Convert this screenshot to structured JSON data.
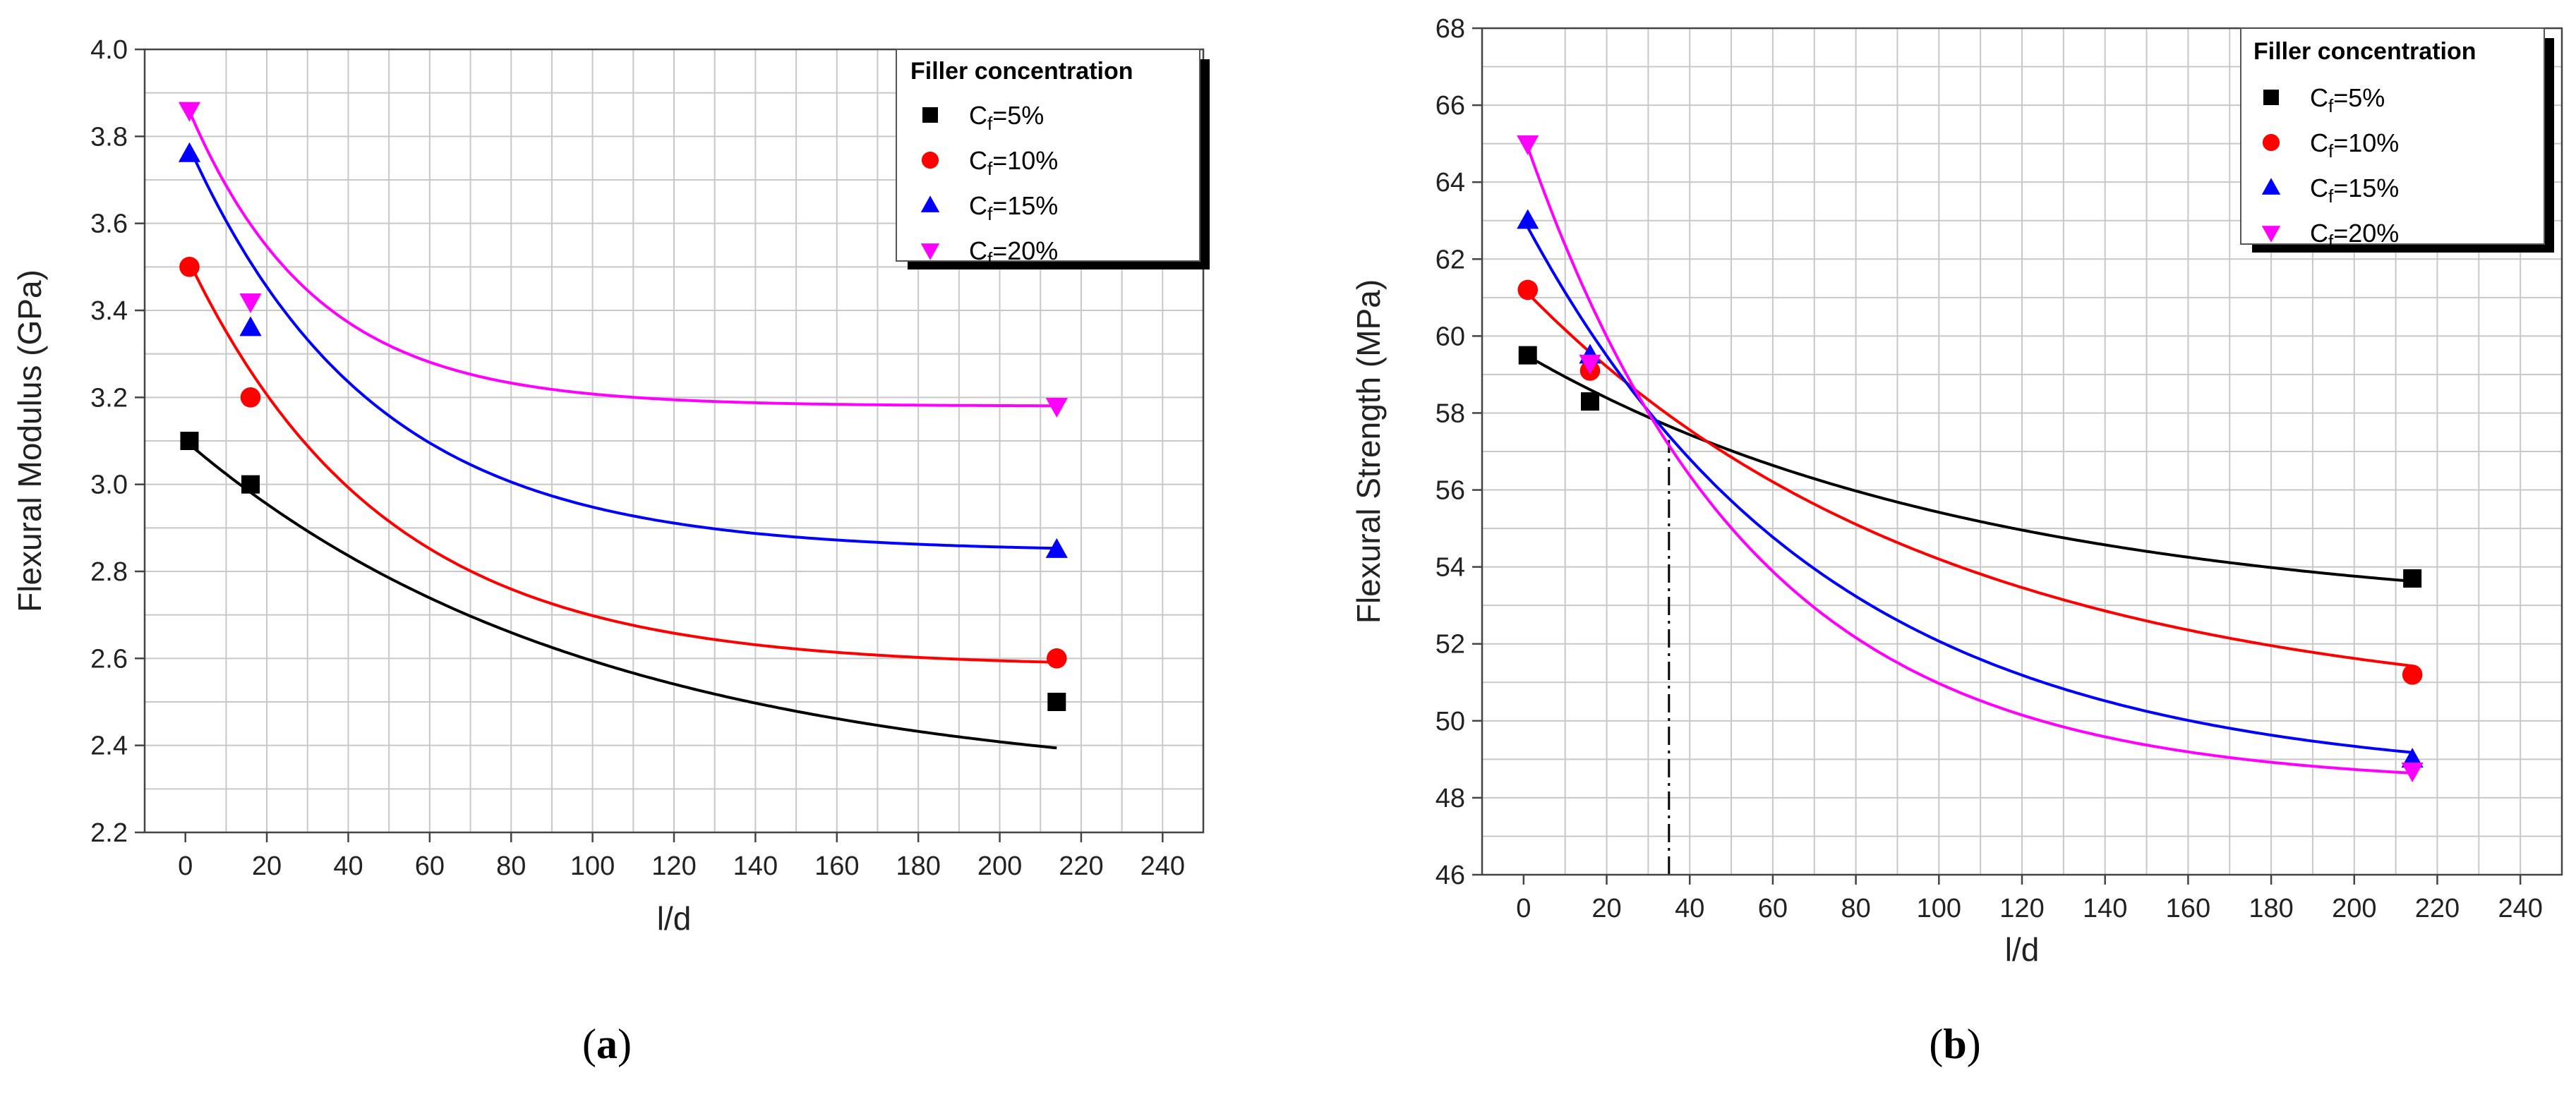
{
  "figure": {
    "panel_a_caption": {
      "open": "(",
      "letter": "a",
      "close": ")"
    },
    "panel_b_caption": {
      "open": "(",
      "letter": "b",
      "close": ")"
    }
  },
  "legend": {
    "title": "Filler concentration",
    "entries": [
      "Cf=5%",
      "Cf=10%",
      "Cf=15%",
      "Cf=20%"
    ],
    "prefix": "C",
    "subscript": "f",
    "suffixes": [
      "=5%",
      "=10%",
      "=15%",
      "=20%"
    ]
  },
  "chart_data": [
    {
      "type": "scatter",
      "title": "",
      "xlabel": "l/d",
      "ylabel": "Flexural Modulus (GPa)",
      "xlim": [
        -10,
        250
      ],
      "ylim": [
        2.2,
        4.0
      ],
      "xticks": [
        0,
        20,
        40,
        60,
        80,
        100,
        120,
        140,
        160,
        180,
        200,
        220,
        240
      ],
      "yticks": [
        "2.2",
        "2.4",
        "2.6",
        "2.8",
        "3.0",
        "3.2",
        "3.4",
        "3.6",
        "3.8",
        "4.0"
      ],
      "grid": true,
      "legend_position": "top-right",
      "series": [
        {
          "name": "Cf=5%",
          "color": "#000000",
          "marker": "square",
          "x": [
            1,
            16,
            214
          ],
          "y": [
            3.1,
            3.0,
            2.5
          ],
          "fit": {
            "A": 0.8,
            "B": 2.3,
            "tau": 100
          }
        },
        {
          "name": "Cf=10%",
          "color": "#ff0000",
          "marker": "circle",
          "x": [
            1,
            16,
            214
          ],
          "y": [
            3.5,
            3.2,
            2.6
          ],
          "fit": {
            "A": 0.95,
            "B": 2.58,
            "tau": 48
          }
        },
        {
          "name": "Cf=15%",
          "color": "#0000ff",
          "marker": "triangle-up",
          "x": [
            1,
            16,
            214
          ],
          "y": [
            3.76,
            3.36,
            2.85
          ],
          "fit": {
            "A": 0.95,
            "B": 2.845,
            "tau": 45
          }
        },
        {
          "name": "Cf=20%",
          "color": "#ff00ff",
          "marker": "triangle-down",
          "x": [
            1,
            16,
            214
          ],
          "y": [
            3.86,
            3.42,
            3.18
          ],
          "fit": {
            "A": 0.7,
            "B": 3.18,
            "tau": 31
          }
        }
      ]
    },
    {
      "type": "scatter",
      "title": "",
      "xlabel": "l/d",
      "ylabel": "Flexural Strength (MPa)",
      "xlim": [
        -10,
        250
      ],
      "ylim": [
        46,
        68
      ],
      "xticks": [
        0,
        20,
        40,
        60,
        80,
        100,
        120,
        140,
        160,
        180,
        200,
        220,
        240
      ],
      "yticks": [
        "46",
        "48",
        "50",
        "52",
        "54",
        "56",
        "58",
        "60",
        "62",
        "64",
        "66",
        "68"
      ],
      "grid": true,
      "legend_position": "top-right",
      "reference_line": {
        "x": 35,
        "style": "dash-dot"
      },
      "series": [
        {
          "name": "Cf=5%",
          "color": "#000000",
          "marker": "square",
          "x": [
            1,
            16,
            214
          ],
          "y": [
            59.5,
            58.3,
            53.7
          ],
          "fit": {
            "A": 6.9,
            "B": 52.64,
            "tau": 110
          }
        },
        {
          "name": "Cf=10%",
          "color": "#ff0000",
          "marker": "circle",
          "x": [
            1,
            16,
            214
          ],
          "y": [
            61.2,
            59.1,
            51.2
          ],
          "fit": {
            "A": 11.1,
            "B": 50.12,
            "tau": 100
          }
        },
        {
          "name": "Cf=15%",
          "color": "#0000ff",
          "marker": "triangle-up",
          "x": [
            1,
            16,
            214
          ],
          "y": [
            63.0,
            59.5,
            49.0
          ],
          "fit": {
            "A": 14.6,
            "B": 48.43,
            "tau": 72
          }
        },
        {
          "name": "Cf=20%",
          "color": "#ff00ff",
          "marker": "triangle-down",
          "x": [
            1,
            16,
            214
          ],
          "y": [
            65.0,
            59.3,
            48.7
          ],
          "fit": {
            "A": 16.9,
            "B": 48.32,
            "tau": 54
          }
        }
      ]
    }
  ]
}
